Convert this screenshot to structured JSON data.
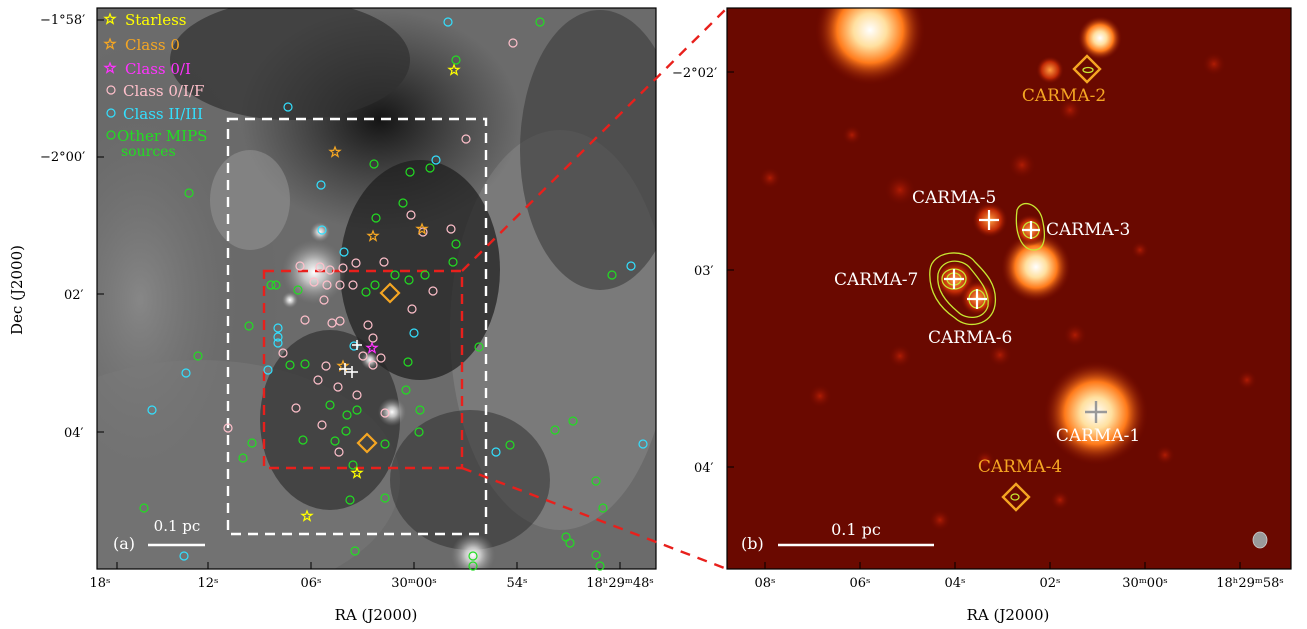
{
  "panel_a": {
    "label": "(a)",
    "scale_label": "0.1 pc",
    "x_axis_label": "RA (J2000)",
    "y_axis_label": "Dec (J2000)",
    "x_ticks": [
      "18",
      "12",
      "06",
      "30",
      "00",
      "54",
      "18",
      "29",
      "48"
    ],
    "x_tick_suffix": "s",
    "x_ticks_display": [
      "18ˢ",
      "12ˢ",
      "06ˢ",
      "30ᵐ00ˢ",
      "54ˢ",
      "18ʰ29ᵐ48ˢ"
    ],
    "y_ticks_display": [
      "−1°58′",
      "−2°00′",
      "02′",
      "04′"
    ],
    "legend": [
      {
        "label": "Starless",
        "marker": "star",
        "color": "#ffff00"
      },
      {
        "label": "Class 0",
        "marker": "star",
        "color": "#f5a623"
      },
      {
        "label": "Class 0/I",
        "marker": "star",
        "color": "#ff33ff"
      },
      {
        "label": "Class 0/I/F",
        "marker": "circle",
        "color": "#ffc0cb"
      },
      {
        "label": "Class II/III",
        "marker": "circle",
        "color": "#33e0ff"
      },
      {
        "label": "Other MIPS",
        "label2": "sources",
        "marker": "circle",
        "color": "#22dd22"
      }
    ]
  },
  "panel_b": {
    "label": "(b)",
    "scale_label": "0.1 pc",
    "x_axis_label": "RA (J2000)",
    "x_ticks_display": [
      "08ˢ",
      "06ˢ",
      "04ˢ",
      "02ˢ",
      "30ᵐ00ˢ",
      "18ʰ29ᵐ58ˢ"
    ],
    "y_ticks_display": [
      "−2°02′",
      "03′",
      "04′"
    ],
    "sources": [
      {
        "name": "CARMA-1",
        "color": "#ffffff"
      },
      {
        "name": "CARMA-2",
        "color": "#f5a623"
      },
      {
        "name": "CARMA-3",
        "color": "#ffffff"
      },
      {
        "name": "CARMA-4",
        "color": "#f5a623"
      },
      {
        "name": "CARMA-5",
        "color": "#ffffff"
      },
      {
        "name": "CARMA-6",
        "color": "#ffffff"
      },
      {
        "name": "CARMA-7",
        "color": "#ffffff"
      }
    ]
  },
  "colors": {
    "starless": "#ffff00",
    "class0": "#f5a623",
    "class0I": "#ff33ff",
    "class0IF": "#ffc0cb",
    "class2": "#33e0ff",
    "mips": "#22dd22",
    "zoom_box": "#e8201c",
    "field_box": "#ffffff",
    "contour": "#c8e632"
  }
}
